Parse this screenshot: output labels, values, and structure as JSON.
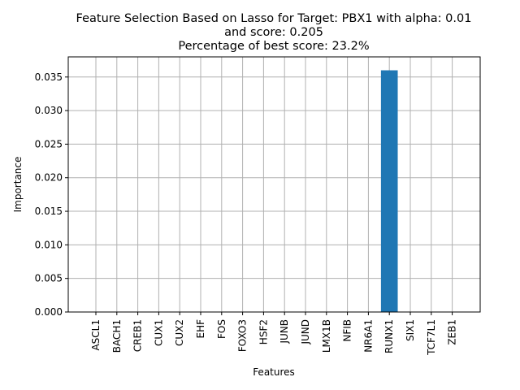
{
  "chart_data": {
    "type": "bar",
    "title_lines": [
      "Feature Selection Based on Lasso for Target: PBX1 with alpha: 0.01",
      "and score: 0.205",
      "Percentage of best score: 23.2%"
    ],
    "xlabel": "Features",
    "ylabel": "Importance",
    "categories": [
      "ASCL1",
      "BACH1",
      "CREB1",
      "CUX1",
      "CUX2",
      "EHF",
      "FOS",
      "FOXO3",
      "HSF2",
      "JUNB",
      "JUND",
      "LMX1B",
      "NFIB",
      "NR6A1",
      "RUNX1",
      "SIX1",
      "TCF7L1",
      "ZEB1"
    ],
    "values": [
      0,
      0,
      0,
      0,
      0,
      0,
      0,
      0,
      0,
      0,
      0,
      0,
      0,
      0,
      0.036,
      0,
      0,
      0
    ],
    "ylim": [
      0,
      0.038
    ],
    "yticks": [
      0.0,
      0.005,
      0.01,
      0.015,
      0.02,
      0.025,
      0.03,
      0.035
    ],
    "ytick_labels": [
      "0.000",
      "0.005",
      "0.010",
      "0.015",
      "0.020",
      "0.025",
      "0.030",
      "0.035"
    ],
    "grid": true,
    "bar_color": "#1f77b4",
    "grid_color": "#b0b0b0"
  }
}
